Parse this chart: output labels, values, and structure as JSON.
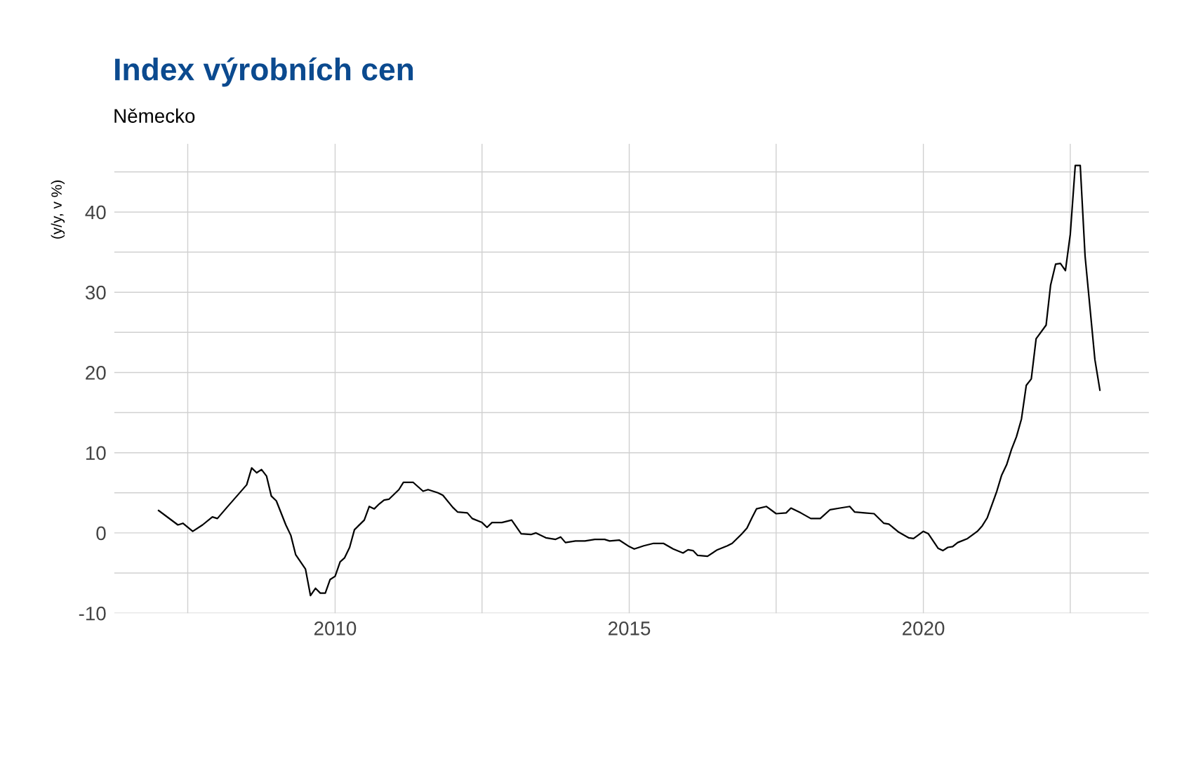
{
  "chart_data": {
    "type": "line",
    "title": "Index výrobních cen",
    "subtitle": "Německo",
    "ylabel": "(y/y, v %)",
    "x": [
      "2007-01",
      "2007-05",
      "2007-06",
      "2007-08",
      "2007-10",
      "2007-12",
      "2008-01",
      "2008-03",
      "2008-05",
      "2008-07",
      "2008-08",
      "2008-09",
      "2008-10",
      "2008-11",
      "2008-12",
      "2009-01",
      "2009-03",
      "2009-04",
      "2009-05",
      "2009-07",
      "2009-08",
      "2009-09",
      "2009-10",
      "2009-11",
      "2009-12",
      "2010-01",
      "2010-02",
      "2010-03",
      "2010-04",
      "2010-05",
      "2010-07",
      "2010-08",
      "2010-09",
      "2010-10",
      "2010-11",
      "2010-12",
      "2011-02",
      "2011-03",
      "2011-05",
      "2011-07",
      "2011-08",
      "2011-10",
      "2011-11",
      "2012-01",
      "2012-02",
      "2012-04",
      "2012-05",
      "2012-07",
      "2012-08",
      "2012-09",
      "2012-11",
      "2013-01",
      "2013-03",
      "2013-05",
      "2013-06",
      "2013-08",
      "2013-10",
      "2013-11",
      "2013-12",
      "2014-02",
      "2014-04",
      "2014-06",
      "2014-08",
      "2014-09",
      "2014-11",
      "2015-01",
      "2015-02",
      "2015-04",
      "2015-06",
      "2015-08",
      "2015-10",
      "2015-12",
      "2016-01",
      "2016-02",
      "2016-03",
      "2016-05",
      "2016-07",
      "2016-09",
      "2016-10",
      "2016-12",
      "2017-01",
      "2017-02",
      "2017-03",
      "2017-05",
      "2017-07",
      "2017-09",
      "2017-10",
      "2017-12",
      "2018-02",
      "2018-04",
      "2018-06",
      "2018-08",
      "2018-10",
      "2018-11",
      "2019-01",
      "2019-03",
      "2019-05",
      "2019-06",
      "2019-08",
      "2019-10",
      "2019-11",
      "2020-01",
      "2020-02",
      "2020-04",
      "2020-05",
      "2020-06",
      "2020-07",
      "2020-08",
      "2020-10",
      "2020-12",
      "2021-01",
      "2021-02",
      "2021-04",
      "2021-05",
      "2021-06",
      "2021-07",
      "2021-08",
      "2021-09",
      "2021-10",
      "2021-11",
      "2021-12",
      "2022-02",
      "2022-03",
      "2022-04",
      "2022-05",
      "2022-06",
      "2022-07",
      "2022-08",
      "2022-09",
      "2022-10",
      "2022-12",
      "2023-01"
    ],
    "series": [
      {
        "color": "#000000",
        "values": [
          2.8,
          1.0,
          1.2,
          0.2,
          1.0,
          2.0,
          1.8,
          3.2,
          4.6,
          6.0,
          8.1,
          7.5,
          7.9,
          7.1,
          4.6,
          4.0,
          1.0,
          -0.3,
          -2.7,
          -4.5,
          -7.8,
          -6.9,
          -7.5,
          -7.5,
          -5.8,
          -5.4,
          -3.6,
          -3.1,
          -1.8,
          0.4,
          1.6,
          3.3,
          3.0,
          3.6,
          4.1,
          4.2,
          5.4,
          6.3,
          6.3,
          5.2,
          5.4,
          5.0,
          4.7,
          3.2,
          2.6,
          2.5,
          1.8,
          1.3,
          0.7,
          1.3,
          1.3,
          1.6,
          -0.1,
          -0.2,
          0.0,
          -0.6,
          -0.8,
          -0.5,
          -1.2,
          -1.0,
          -1.0,
          -0.8,
          -0.8,
          -1.0,
          -0.9,
          -1.7,
          -2.0,
          -1.6,
          -1.3,
          -1.3,
          -2.0,
          -2.5,
          -2.1,
          -2.2,
          -2.8,
          -2.9,
          -2.1,
          -1.6,
          -1.3,
          -0.1,
          0.6,
          1.9,
          3.0,
          3.3,
          2.4,
          2.5,
          3.1,
          2.5,
          1.8,
          1.8,
          2.9,
          3.1,
          3.3,
          2.6,
          2.5,
          2.4,
          1.2,
          1.1,
          0.1,
          -0.6,
          -0.7,
          0.2,
          -0.1,
          -1.9,
          -2.2,
          -1.8,
          -1.7,
          -1.2,
          -0.7,
          0.2,
          0.9,
          1.9,
          5.2,
          7.2,
          8.5,
          10.4,
          12.0,
          14.2,
          18.4,
          19.2,
          24.2,
          25.9,
          30.9,
          33.5,
          33.6,
          32.7,
          37.2,
          45.8,
          45.8,
          34.5,
          21.6,
          17.8
        ]
      }
    ],
    "xlim": [
      "2006-04",
      "2023-11"
    ],
    "xticks": [
      {
        "value": "2007-07",
        "label": null
      },
      {
        "value": "2010-01",
        "label": "2010"
      },
      {
        "value": "2012-07",
        "label": null
      },
      {
        "value": "2015-01",
        "label": "2015"
      },
      {
        "value": "2017-07",
        "label": null
      },
      {
        "value": "2020-01",
        "label": "2020"
      },
      {
        "value": "2022-07",
        "label": null
      }
    ],
    "ylim": [
      -10,
      48.5
    ],
    "yticks": [
      -10,
      {
        "value": -5,
        "label": null
      },
      0,
      {
        "value": 5,
        "label": null
      },
      10,
      {
        "value": 15,
        "label": null
      },
      20,
      {
        "value": 25,
        "label": null
      },
      30,
      {
        "value": 35,
        "label": null
      },
      40,
      {
        "value": 45,
        "label": null
      }
    ],
    "grid": true,
    "line_style": "solid",
    "marker": "none"
  }
}
